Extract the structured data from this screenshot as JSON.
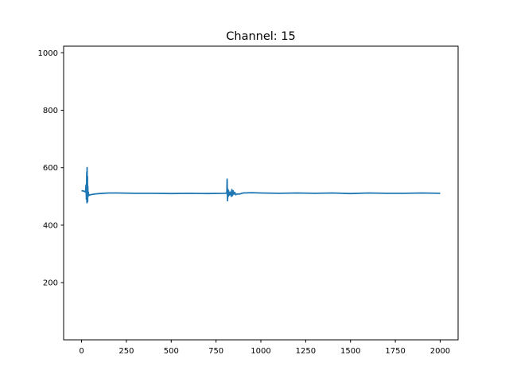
{
  "chart_data": {
    "type": "line",
    "title": "Channel: 15",
    "xlabel": "",
    "ylabel": "",
    "xlim": [
      -100,
      2100
    ],
    "ylim": [
      1,
      1023
    ],
    "xticks": [
      0,
      250,
      500,
      750,
      1000,
      1250,
      1500,
      1750,
      2000
    ],
    "yticks": [
      200,
      400,
      600,
      800,
      1000
    ],
    "grid": false,
    "color": "#1f77b4",
    "series": [
      {
        "x": [
          0,
          10,
          18,
          22,
          25,
          27,
          29,
          30,
          31,
          32,
          33,
          34,
          35,
          36,
          38,
          40,
          45,
          50,
          60,
          80,
          100,
          150,
          200,
          300,
          400,
          500,
          600,
          700,
          800,
          808,
          810,
          812,
          814,
          816,
          818,
          820,
          825,
          830,
          835,
          838,
          842,
          845,
          850,
          855,
          860,
          870,
          880,
          900,
          950,
          1000,
          1100,
          1200,
          1300,
          1400,
          1500,
          1600,
          1700,
          1800,
          1900,
          2000
        ],
        "y": [
          520,
          519,
          517,
          515,
          540,
          490,
          585,
          478,
          600,
          495,
          570,
          482,
          535,
          500,
          515,
          503,
          505,
          506,
          507,
          509,
          510,
          512,
          512,
          511,
          511,
          510,
          511,
          510,
          511,
          512,
          510,
          560,
          485,
          525,
          500,
          520,
          505,
          515,
          500,
          524,
          503,
          520,
          508,
          514,
          506,
          509,
          508,
          512,
          513,
          512,
          511,
          512,
          511,
          512,
          510,
          512,
          511,
          511,
          512,
          511
        ]
      }
    ]
  }
}
